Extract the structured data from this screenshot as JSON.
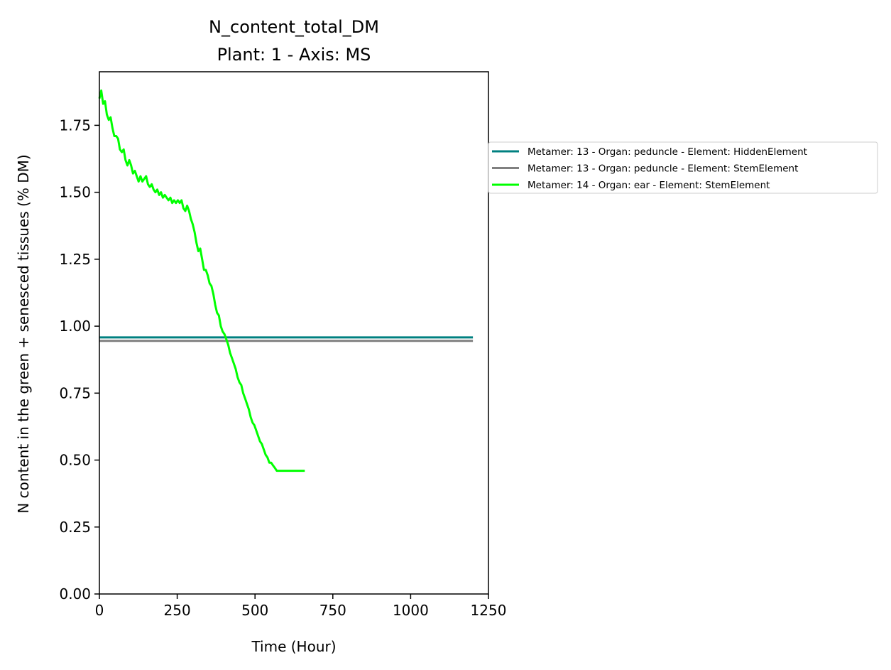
{
  "chart_data": {
    "type": "line",
    "title": "N_content_total_DM",
    "subtitle": "Plant: 1 - Axis: MS",
    "xlabel": "Time (Hour)",
    "ylabel": "N content in the green + senesced tissues (% DM)",
    "xlim": [
      0,
      1250
    ],
    "ylim": [
      0,
      1.95
    ],
    "xticks": [
      0,
      250,
      500,
      750,
      1000,
      1250
    ],
    "xtick_labels": [
      "0",
      "250",
      "500",
      "750",
      "1000",
      "1250"
    ],
    "yticks": [
      0,
      0.25,
      0.5,
      0.75,
      1.0,
      1.25,
      1.5,
      1.75
    ],
    "ytick_labels": [
      "0.00",
      "0.25",
      "0.50",
      "0.75",
      "1.00",
      "1.25",
      "1.50",
      "1.75"
    ],
    "grid": false,
    "legend_position": "outside right, upper",
    "series": [
      {
        "name": "Metamer: 13 - Organ: peduncle - Element: HiddenElement",
        "color": "#008080",
        "x": [
          0,
          1200
        ],
        "y": [
          0.958,
          0.958
        ]
      },
      {
        "name": "Metamer: 13 - Organ: peduncle - Element: StemElement",
        "color": "#808080",
        "x": [
          0,
          1200
        ],
        "y": [
          0.945,
          0.945
        ]
      },
      {
        "name": "Metamer: 14 - Organ: ear - Element: StemElement",
        "color": "#00ff00",
        "x": [
          0,
          6,
          12,
          18,
          24,
          30,
          36,
          42,
          48,
          54,
          60,
          66,
          72,
          78,
          84,
          90,
          96,
          102,
          108,
          114,
          120,
          126,
          132,
          138,
          144,
          150,
          156,
          162,
          168,
          174,
          180,
          186,
          192,
          198,
          204,
          210,
          216,
          222,
          228,
          234,
          240,
          246,
          252,
          258,
          264,
          270,
          276,
          282,
          288,
          294,
          300,
          306,
          312,
          318,
          324,
          330,
          336,
          342,
          348,
          354,
          360,
          366,
          372,
          378,
          384,
          390,
          396,
          402,
          408,
          414,
          420,
          426,
          432,
          438,
          444,
          450,
          456,
          462,
          468,
          474,
          480,
          486,
          492,
          498,
          504,
          510,
          516,
          522,
          528,
          534,
          540,
          546,
          552,
          558,
          564,
          570,
          576,
          582,
          588,
          594,
          600,
          606,
          612,
          618,
          624,
          630,
          636,
          642,
          648,
          654,
          660
        ],
        "y": [
          1.85,
          1.88,
          1.83,
          1.84,
          1.79,
          1.77,
          1.78,
          1.74,
          1.71,
          1.71,
          1.7,
          1.66,
          1.65,
          1.66,
          1.62,
          1.6,
          1.62,
          1.6,
          1.57,
          1.58,
          1.56,
          1.54,
          1.56,
          1.54,
          1.55,
          1.56,
          1.53,
          1.52,
          1.53,
          1.51,
          1.5,
          1.51,
          1.49,
          1.5,
          1.48,
          1.49,
          1.48,
          1.47,
          1.48,
          1.46,
          1.47,
          1.46,
          1.47,
          1.46,
          1.47,
          1.44,
          1.43,
          1.45,
          1.43,
          1.4,
          1.38,
          1.35,
          1.31,
          1.28,
          1.29,
          1.25,
          1.21,
          1.21,
          1.19,
          1.16,
          1.15,
          1.12,
          1.08,
          1.05,
          1.04,
          1.0,
          0.98,
          0.97,
          0.95,
          0.93,
          0.9,
          0.88,
          0.86,
          0.84,
          0.81,
          0.79,
          0.78,
          0.75,
          0.73,
          0.71,
          0.69,
          0.66,
          0.64,
          0.63,
          0.61,
          0.59,
          0.57,
          0.56,
          0.54,
          0.52,
          0.51,
          0.49,
          0.49,
          0.48,
          0.47,
          0.46,
          0.46,
          0.46,
          0.46,
          0.46,
          0.46,
          0.46,
          0.46,
          0.46,
          0.46,
          0.46,
          0.46,
          0.46,
          0.46,
          0.46,
          0.46
        ]
      }
    ]
  }
}
